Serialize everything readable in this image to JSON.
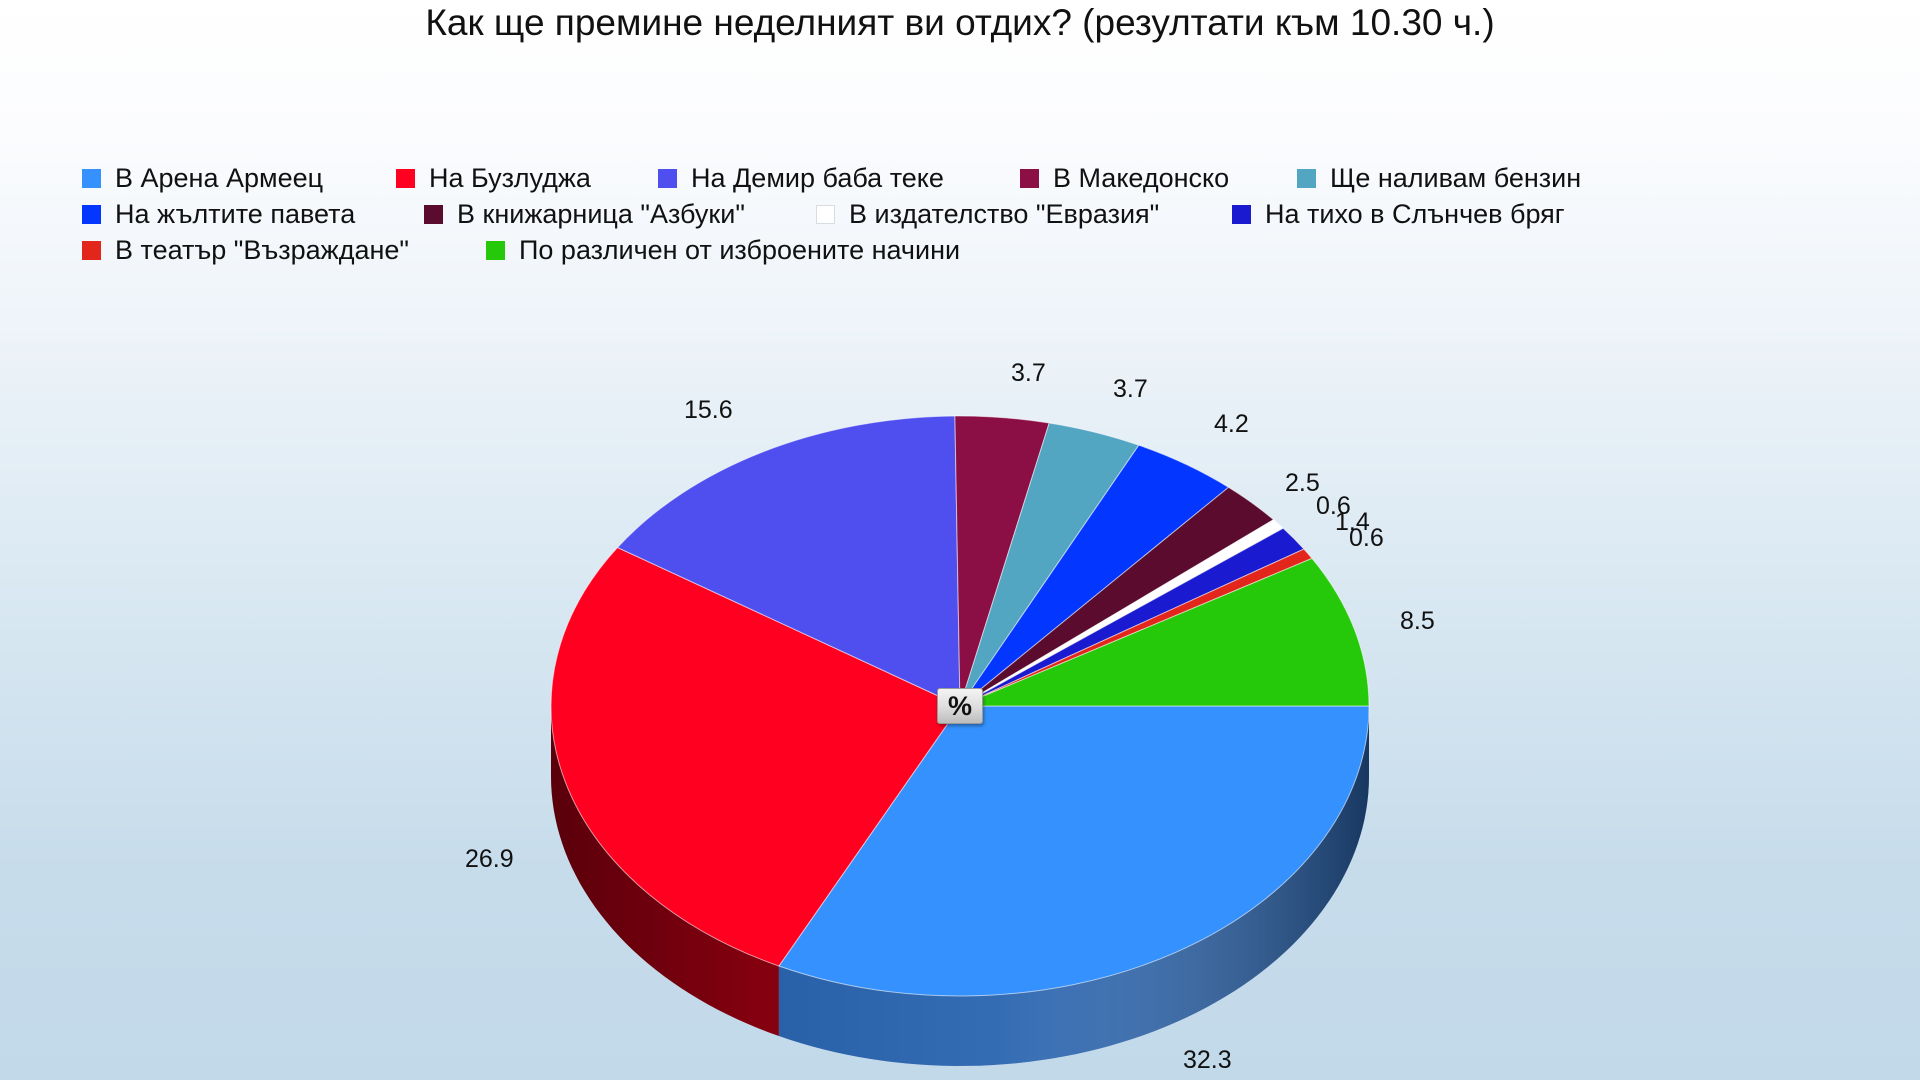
{
  "chart_data": {
    "type": "pie",
    "title": "Как ще премине неделният ви отдих? (резултати към 10.30 ч.)",
    "unit_badge": "%",
    "legend_position": "top",
    "categories": [
      "В Арена Армеец",
      "На Бузлуджа",
      "На Демир баба теке",
      "В Македонско",
      "Ще наливам бензин",
      "На жълтите павета",
      "В книжарница \"Азбуки\"",
      "В издателство \"Евразия\"",
      "На тихо в Слънчев бряг",
      "В театър \"Възраждане\"",
      "По различен от изброените начини"
    ],
    "values": [
      32.3,
      26.9,
      15.6,
      3.7,
      3.7,
      4.2,
      2.5,
      0.6,
      1.4,
      0.6,
      8.5
    ],
    "value_labels": [
      "32.3",
      "26.9",
      "15.6",
      "3.7",
      "3.7",
      "4.2",
      "2.5",
      "0.6",
      "1.4",
      "0.6",
      "8.5"
    ],
    "colors": [
      "#3591fd",
      "#ff0020",
      "#4f4ff0",
      "#8b0f44",
      "#53a6c2",
      "#0336ff",
      "#5a0b2e",
      "#ffffff",
      "#1a1ad0",
      "#e3261c",
      "#26c90a"
    ],
    "side_colors": [
      "#2a65b0",
      "#8a0010",
      "#30309a",
      "#5a0a2c",
      "#357085",
      "#0222a8",
      "#3a061c",
      "#c8c8c8",
      "#101088",
      "#961810",
      "#168006"
    ]
  },
  "legend": {
    "items": [
      {
        "label": "В Арена Армеец",
        "color": "#3591fd"
      },
      {
        "label": "На Бузлуджа",
        "color": "#ff0020"
      },
      {
        "label": "На Демир баба теке",
        "color": "#4f4ff0"
      },
      {
        "label": "В Македонско",
        "color": "#8b0f44"
      },
      {
        "label": "Ще наливам бензин",
        "color": "#53a6c2"
      },
      {
        "label": "На жълтите павета",
        "color": "#0336ff"
      },
      {
        "label": "В книжарница \"Азбуки\"",
        "color": "#5a0b2e"
      },
      {
        "label": "В издателство \"Евразия\"",
        "color": "#ffffff"
      },
      {
        "label": "На тихо в Слънчев бряг",
        "color": "#1a1ad0"
      },
      {
        "label": "В театър \"Възраждане\"",
        "color": "#e3261c"
      },
      {
        "label": "По различен от изброените начини",
        "color": "#26c90a"
      }
    ]
  }
}
